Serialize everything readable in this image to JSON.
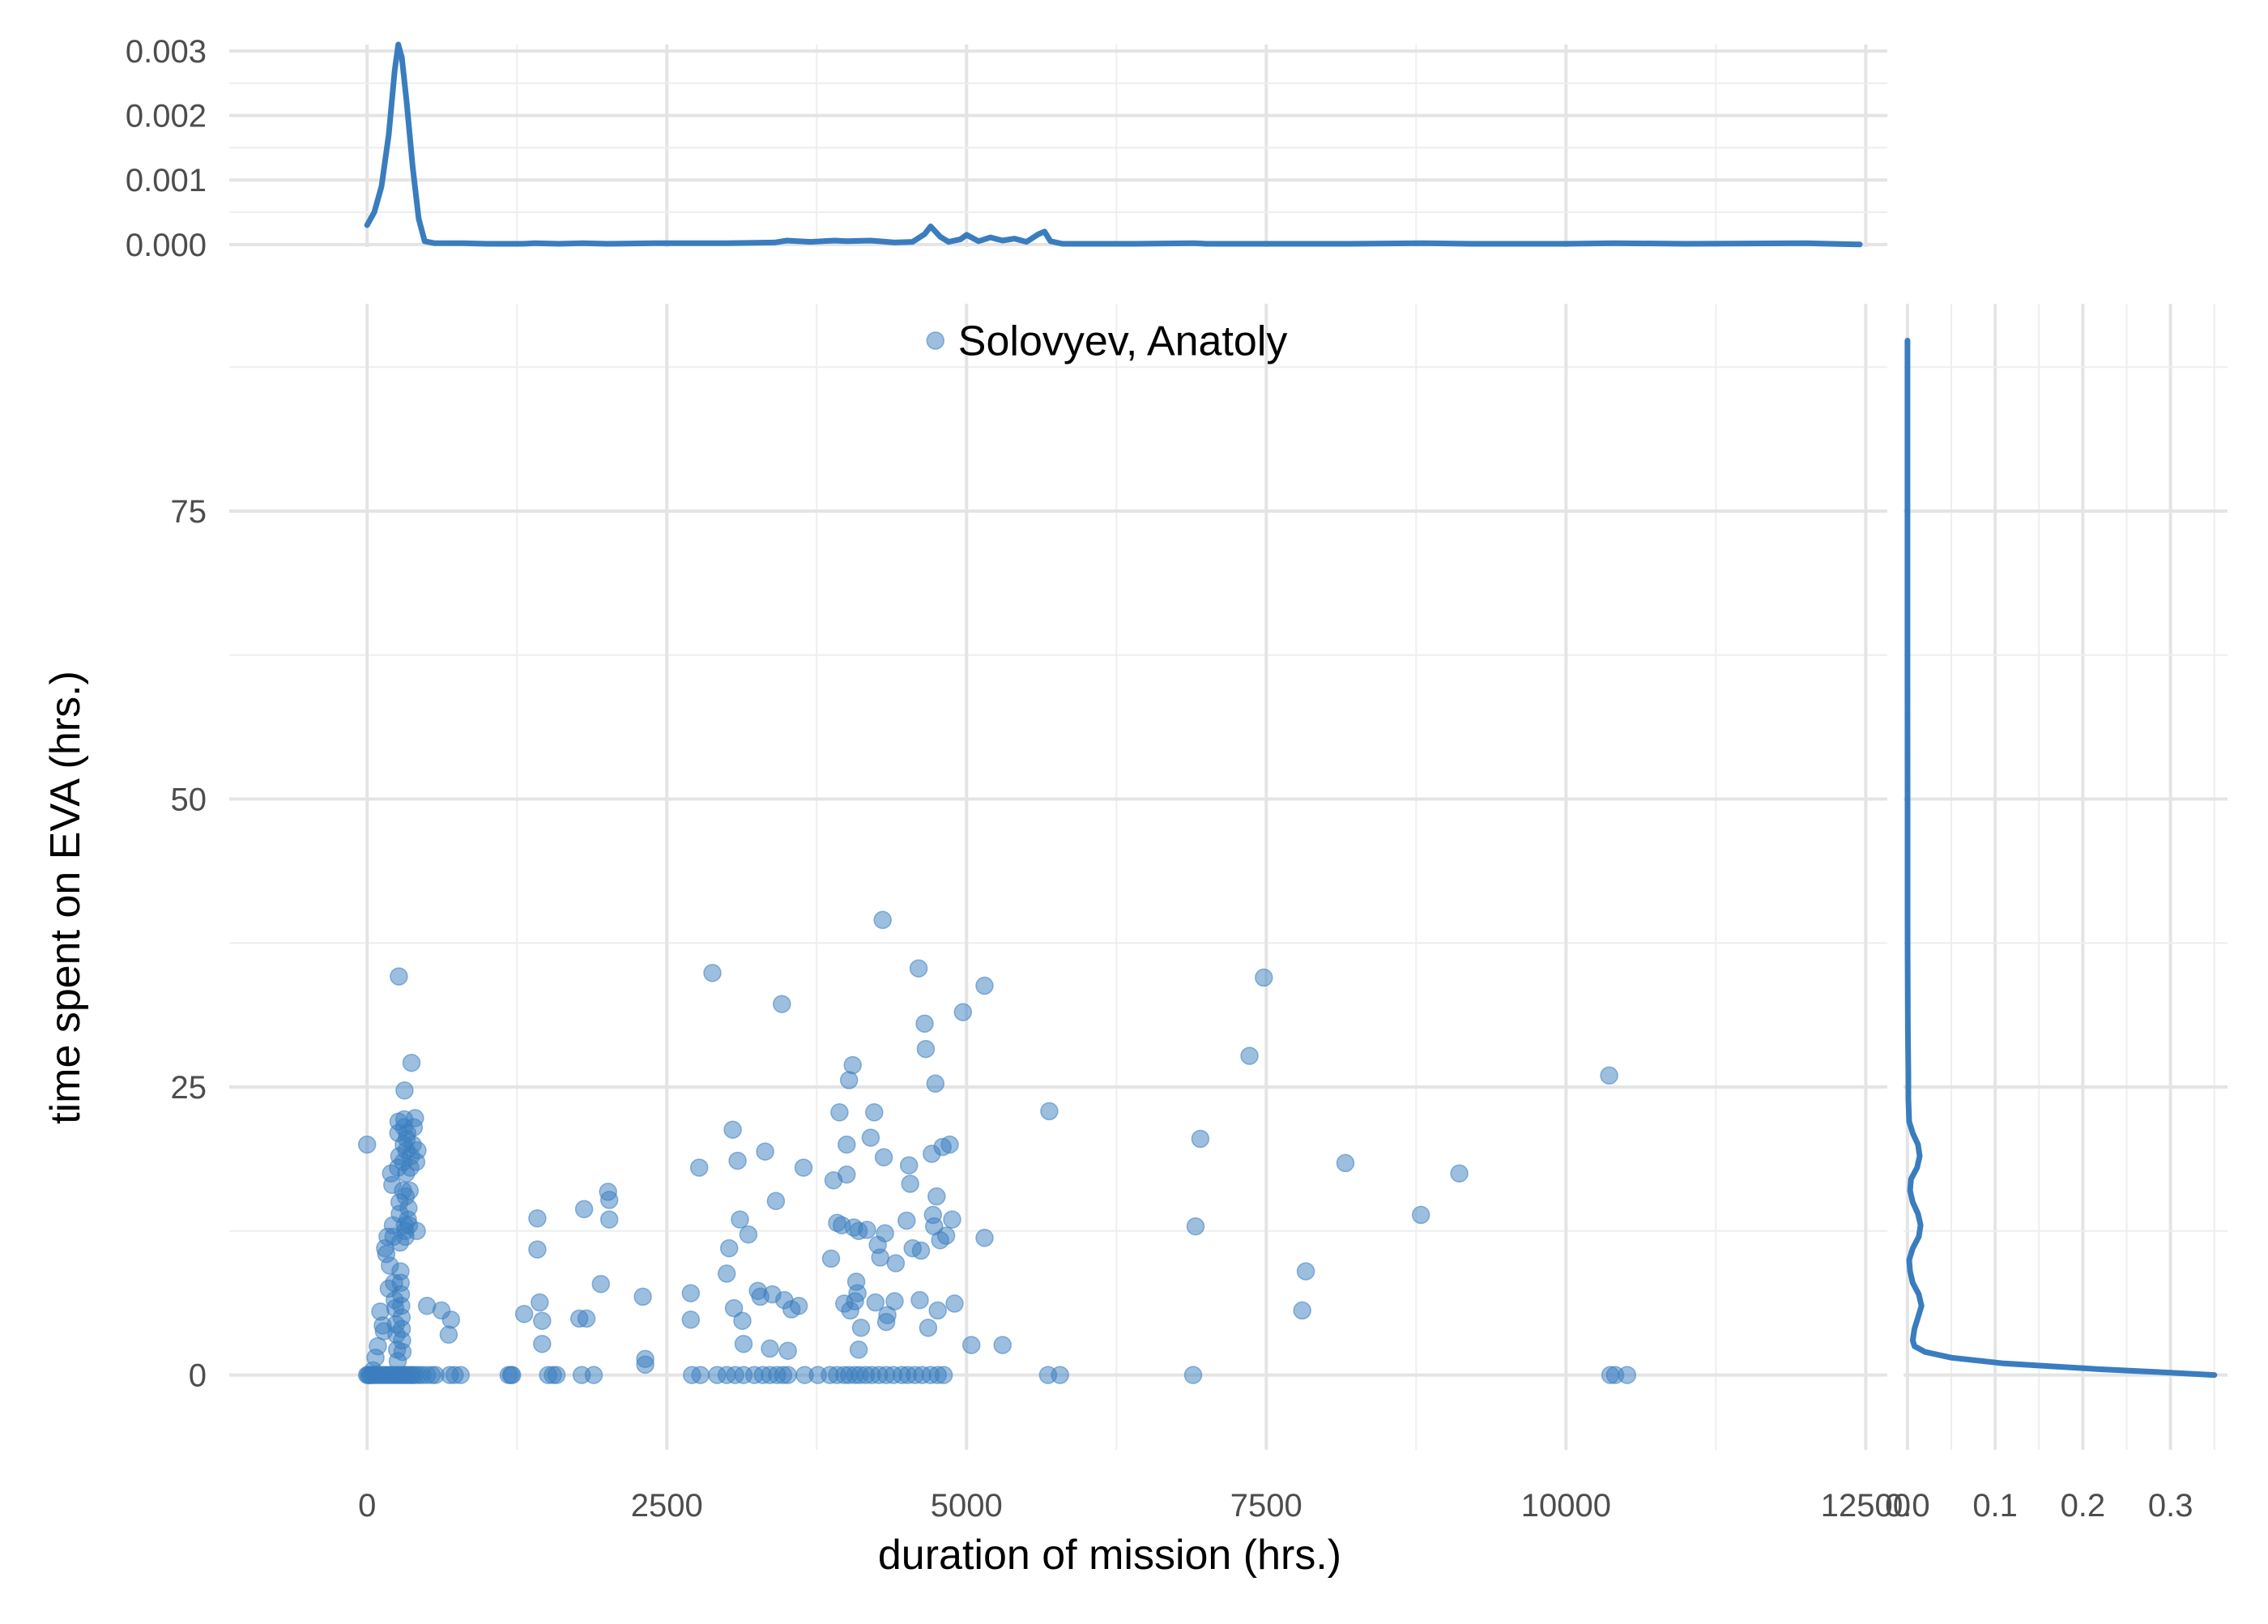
{
  "chart_data": {
    "type": "scatter",
    "xlabel": "duration of mission (hrs.)",
    "ylabel": "time spent on EVA (hrs.)",
    "xlim": [
      -1150,
      12680
    ],
    "ylim": [
      -6.5,
      93
    ],
    "x_ticks": [
      0,
      2500,
      5000,
      7500,
      10000,
      12500
    ],
    "x_tick_labels": [
      "0",
      "2500",
      "5000",
      "7500",
      "10000",
      "12500"
    ],
    "y_ticks": [
      0,
      25,
      50,
      75
    ],
    "y_tick_labels": [
      "0",
      "25",
      "50",
      "75"
    ],
    "grid": true,
    "point_color": "#3a7dbf",
    "line_color": "#3a7dbf",
    "annotation": {
      "label": "Solovyev, Anatoly",
      "x": 4740,
      "y": 89.8
    },
    "points": [
      [
        0,
        0
      ],
      [
        10,
        0
      ],
      [
        20,
        0
      ],
      [
        30,
        0
      ],
      [
        40,
        0
      ],
      [
        60,
        0
      ],
      [
        80,
        0
      ],
      [
        100,
        0
      ],
      [
        120,
        0
      ],
      [
        140,
        0
      ],
      [
        160,
        0
      ],
      [
        180,
        0
      ],
      [
        200,
        0
      ],
      [
        220,
        0
      ],
      [
        240,
        0
      ],
      [
        260,
        0
      ],
      [
        280,
        0
      ],
      [
        300,
        0
      ],
      [
        320,
        0
      ],
      [
        340,
        0
      ],
      [
        360,
        0
      ],
      [
        380,
        0
      ],
      [
        400,
        0
      ],
      [
        430,
        0
      ],
      [
        460,
        0
      ],
      [
        500,
        0
      ],
      [
        540,
        0
      ],
      [
        570,
        0
      ],
      [
        690,
        0
      ],
      [
        730,
        0
      ],
      [
        780,
        0
      ],
      [
        1180,
        0
      ],
      [
        1210,
        0
      ],
      [
        1510,
        0
      ],
      [
        1550,
        0
      ],
      [
        1580,
        0
      ],
      [
        1790,
        0
      ],
      [
        1890,
        0
      ],
      [
        2710,
        0
      ],
      [
        2780,
        0
      ],
      [
        2920,
        0
      ],
      [
        3000,
        0
      ],
      [
        3070,
        0
      ],
      [
        3140,
        0
      ],
      [
        3230,
        0
      ],
      [
        3300,
        0
      ],
      [
        3360,
        0
      ],
      [
        3420,
        0
      ],
      [
        3470,
        0
      ],
      [
        3510,
        0
      ],
      [
        3650,
        0
      ],
      [
        3760,
        0
      ],
      [
        3860,
        0
      ],
      [
        3920,
        0
      ],
      [
        3980,
        0
      ],
      [
        4020,
        0
      ],
      [
        4070,
        0
      ],
      [
        4110,
        0
      ],
      [
        4160,
        0
      ],
      [
        4210,
        0
      ],
      [
        4270,
        0
      ],
      [
        4330,
        0
      ],
      [
        4390,
        0
      ],
      [
        4460,
        0
      ],
      [
        4510,
        0
      ],
      [
        4570,
        0
      ],
      [
        4630,
        0
      ],
      [
        4700,
        0
      ],
      [
        4760,
        0
      ],
      [
        4810,
        0
      ],
      [
        5680,
        0
      ],
      [
        5780,
        0
      ],
      [
        6890,
        0
      ],
      [
        10370,
        0
      ],
      [
        10410,
        0
      ],
      [
        10510,
        0
      ],
      [
        0,
        20
      ],
      [
        50,
        0.4
      ],
      [
        70,
        1.5
      ],
      [
        90,
        2.5
      ],
      [
        110,
        5.5
      ],
      [
        130,
        4.3
      ],
      [
        140,
        3.8
      ],
      [
        150,
        11
      ],
      [
        160,
        10.5
      ],
      [
        170,
        12
      ],
      [
        180,
        7.5
      ],
      [
        190,
        9.5
      ],
      [
        200,
        17.5
      ],
      [
        210,
        16.5
      ],
      [
        215,
        13
      ],
      [
        220,
        12
      ],
      [
        225,
        8
      ],
      [
        230,
        6.5
      ],
      [
        235,
        5.8
      ],
      [
        240,
        4.4
      ],
      [
        245,
        3.5
      ],
      [
        250,
        2.2
      ],
      [
        255,
        1.2
      ],
      [
        258,
        18
      ],
      [
        260,
        21
      ],
      [
        262,
        22
      ],
      [
        265,
        34.6
      ],
      [
        268,
        19
      ],
      [
        270,
        15
      ],
      [
        272,
        14
      ],
      [
        275,
        11.5
      ],
      [
        278,
        9
      ],
      [
        280,
        8
      ],
      [
        282,
        7
      ],
      [
        285,
        6
      ],
      [
        288,
        5
      ],
      [
        290,
        4
      ],
      [
        292,
        3
      ],
      [
        295,
        2
      ],
      [
        300,
        16
      ],
      [
        302,
        18.5
      ],
      [
        305,
        20
      ],
      [
        308,
        21.5
      ],
      [
        310,
        22.2
      ],
      [
        312,
        24.7
      ],
      [
        315,
        13
      ],
      [
        318,
        12.5
      ],
      [
        320,
        12
      ],
      [
        322,
        15.5
      ],
      [
        325,
        17.5
      ],
      [
        328,
        19.5
      ],
      [
        330,
        20.5
      ],
      [
        335,
        21
      ],
      [
        340,
        13.5
      ],
      [
        345,
        14.5
      ],
      [
        350,
        13
      ],
      [
        355,
        16
      ],
      [
        360,
        18
      ],
      [
        365,
        19
      ],
      [
        370,
        27.1
      ],
      [
        380,
        20
      ],
      [
        390,
        21.5
      ],
      [
        400,
        22.3
      ],
      [
        410,
        18.5
      ],
      [
        415,
        12.5
      ],
      [
        420,
        19.5
      ],
      [
        500,
        6
      ],
      [
        620,
        5.6
      ],
      [
        680,
        3.5
      ],
      [
        700,
        4.8
      ],
      [
        1200,
        0
      ],
      [
        1310,
        5.3
      ],
      [
        1420,
        13.6
      ],
      [
        1420,
        10.9
      ],
      [
        1440,
        6.3
      ],
      [
        1460,
        4.7
      ],
      [
        1460,
        2.7
      ],
      [
        1770,
        4.9
      ],
      [
        1810,
        14.4
      ],
      [
        1830,
        4.9
      ],
      [
        1950,
        7.9
      ],
      [
        2010,
        15.9
      ],
      [
        2020,
        13.5
      ],
      [
        2020,
        15.2
      ],
      [
        2300,
        6.8
      ],
      [
        2320,
        1.4
      ],
      [
        2320,
        0.9
      ],
      [
        2700,
        7.1
      ],
      [
        2700,
        4.8
      ],
      [
        2770,
        18
      ],
      [
        2880,
        34.9
      ],
      [
        3000,
        8.8
      ],
      [
        3020,
        11
      ],
      [
        3050,
        21.3
      ],
      [
        3060,
        5.8
      ],
      [
        3090,
        18.6
      ],
      [
        3110,
        13.5
      ],
      [
        3130,
        4.7
      ],
      [
        3140,
        2.7
      ],
      [
        3180,
        12.2
      ],
      [
        3260,
        7.3
      ],
      [
        3280,
        6.8
      ],
      [
        3320,
        19.4
      ],
      [
        3360,
        2.3
      ],
      [
        3380,
        7
      ],
      [
        3410,
        15.1
      ],
      [
        3460,
        32.2
      ],
      [
        3480,
        6.5
      ],
      [
        3510,
        2.1
      ],
      [
        3540,
        5.7
      ],
      [
        3600,
        6
      ],
      [
        3640,
        18
      ],
      [
        3870,
        10.1
      ],
      [
        3890,
        16.9
      ],
      [
        3920,
        13.2
      ],
      [
        3940,
        22.8
      ],
      [
        3960,
        13
      ],
      [
        3980,
        6.2
      ],
      [
        4000,
        17.4
      ],
      [
        4000,
        20
      ],
      [
        4020,
        25.6
      ],
      [
        4030,
        5.6
      ],
      [
        4050,
        26.9
      ],
      [
        4060,
        12.8
      ],
      [
        4070,
        6.4
      ],
      [
        4080,
        8.1
      ],
      [
        4090,
        7.1
      ],
      [
        4100,
        12.5
      ],
      [
        4100,
        2.2
      ],
      [
        4120,
        4.1
      ],
      [
        4170,
        12.6
      ],
      [
        4200,
        20.6
      ],
      [
        4230,
        22.8
      ],
      [
        4240,
        6.3
      ],
      [
        4260,
        11.3
      ],
      [
        4280,
        10.2
      ],
      [
        4300,
        39.5
      ],
      [
        4310,
        18.9
      ],
      [
        4320,
        12.3
      ],
      [
        4330,
        4.6
      ],
      [
        4340,
        5.2
      ],
      [
        4400,
        6.4
      ],
      [
        4410,
        9.7
      ],
      [
        4500,
        13.4
      ],
      [
        4520,
        18.2
      ],
      [
        4530,
        16.6
      ],
      [
        4550,
        11
      ],
      [
        4600,
        35.3
      ],
      [
        4610,
        6.5
      ],
      [
        4620,
        10.8
      ],
      [
        4650,
        30.5
      ],
      [
        4660,
        28.3
      ],
      [
        4680,
        4.1
      ],
      [
        4710,
        19.2
      ],
      [
        4720,
        13.9
      ],
      [
        4730,
        12.9
      ],
      [
        4740,
        25.3
      ],
      [
        4750,
        15.5
      ],
      [
        4760,
        5.6
      ],
      [
        4780,
        11.7
      ],
      [
        4800,
        19.8
      ],
      [
        4830,
        12.1
      ],
      [
        4860,
        20
      ],
      [
        4880,
        13.5
      ],
      [
        4900,
        6.2
      ],
      [
        4970,
        31.5
      ],
      [
        5040,
        2.6
      ],
      [
        5150,
        33.8
      ],
      [
        5150,
        11.9
      ],
      [
        5300,
        2.6
      ],
      [
        5690,
        22.9
      ],
      [
        6910,
        12.9
      ],
      [
        6950,
        20.5
      ],
      [
        7360,
        27.7
      ],
      [
        7480,
        34.5
      ],
      [
        7800,
        5.6
      ],
      [
        7830,
        9
      ],
      [
        8160,
        18.4
      ],
      [
        8790,
        13.9
      ],
      [
        9110,
        17.5
      ],
      [
        10360,
        26
      ]
    ],
    "top_density": {
      "y_ticks": [
        0,
        0.001,
        0.002,
        0.003
      ],
      "y_tick_labels": [
        "0.000",
        "0.001",
        "0.002",
        "0.003"
      ],
      "ylim": [
        -4e-05,
        0.0031
      ],
      "curve": [
        [
          0,
          0.0003
        ],
        [
          60,
          0.0005
        ],
        [
          120,
          0.0009
        ],
        [
          180,
          0.0017
        ],
        [
          230,
          0.0027
        ],
        [
          260,
          0.0031
        ],
        [
          290,
          0.0029
        ],
        [
          330,
          0.0022
        ],
        [
          380,
          0.0012
        ],
        [
          430,
          0.0004
        ],
        [
          480,
          5e-05
        ],
        [
          560,
          2e-05
        ],
        [
          800,
          2e-05
        ],
        [
          1000,
          1e-05
        ],
        [
          1300,
          1e-05
        ],
        [
          1400,
          2e-05
        ],
        [
          1600,
          1e-05
        ],
        [
          1800,
          2e-05
        ],
        [
          2000,
          1e-05
        ],
        [
          2400,
          2e-05
        ],
        [
          2800,
          2e-05
        ],
        [
          3000,
          2e-05
        ],
        [
          3400,
          3e-05
        ],
        [
          3500,
          6e-05
        ],
        [
          3700,
          4e-05
        ],
        [
          3900,
          6e-05
        ],
        [
          4000,
          5e-05
        ],
        [
          4200,
          6e-05
        ],
        [
          4400,
          3e-05
        ],
        [
          4550,
          4e-05
        ],
        [
          4650,
          0.00016
        ],
        [
          4700,
          0.00028
        ],
        [
          4780,
          0.00012
        ],
        [
          4850,
          4e-05
        ],
        [
          4950,
          8e-05
        ],
        [
          5000,
          0.00015
        ],
        [
          5100,
          5e-05
        ],
        [
          5200,
          0.00011
        ],
        [
          5300,
          6e-05
        ],
        [
          5400,
          9e-05
        ],
        [
          5500,
          4e-05
        ],
        [
          5600,
          0.00016
        ],
        [
          5650,
          0.0002
        ],
        [
          5700,
          5e-05
        ],
        [
          5800,
          1e-05
        ],
        [
          6400,
          1e-05
        ],
        [
          6900,
          2e-05
        ],
        [
          7000,
          1e-05
        ],
        [
          7500,
          1e-05
        ],
        [
          8200,
          1e-05
        ],
        [
          8800,
          2e-05
        ],
        [
          9200,
          1e-05
        ],
        [
          10000,
          1e-05
        ],
        [
          10400,
          2e-05
        ],
        [
          11000,
          1e-05
        ],
        [
          12000,
          2e-05
        ],
        [
          12200,
          1e-05
        ],
        [
          12450,
          0
        ]
      ]
    },
    "right_density": {
      "x_ticks": [
        0,
        0.1,
        0.2,
        0.3
      ],
      "x_tick_labels": [
        "0.0",
        "0.1",
        "0.2",
        "0.3"
      ],
      "xlim": [
        -0.0045,
        0.365
      ],
      "curve": [
        [
          0,
          0.35
        ],
        [
          0.2,
          0.3
        ],
        [
          0.5,
          0.22
        ],
        [
          1,
          0.11
        ],
        [
          1.5,
          0.05
        ],
        [
          2,
          0.02
        ],
        [
          2.5,
          0.008
        ],
        [
          3,
          0.006
        ],
        [
          4,
          0.008
        ],
        [
          5,
          0.012
        ],
        [
          6,
          0.016
        ],
        [
          7,
          0.013
        ],
        [
          8,
          0.006
        ],
        [
          9,
          0.003
        ],
        [
          10,
          0.002
        ],
        [
          11,
          0.006
        ],
        [
          12,
          0.013
        ],
        [
          13,
          0.015
        ],
        [
          14,
          0.012
        ],
        [
          15,
          0.006
        ],
        [
          16,
          0.003
        ],
        [
          17,
          0.004
        ],
        [
          18,
          0.011
        ],
        [
          19,
          0.014
        ],
        [
          20,
          0.012
        ],
        [
          21,
          0.006
        ],
        [
          22,
          0.002
        ],
        [
          24,
          0.001
        ],
        [
          26,
          0.001
        ],
        [
          30,
          0.0005
        ],
        [
          36,
          0.0002
        ],
        [
          40,
          0.0001
        ],
        [
          50,
          0.0001
        ],
        [
          60,
          5e-05
        ],
        [
          70,
          3e-05
        ],
        [
          80,
          2e-05
        ],
        [
          89.8,
          0
        ]
      ]
    }
  }
}
